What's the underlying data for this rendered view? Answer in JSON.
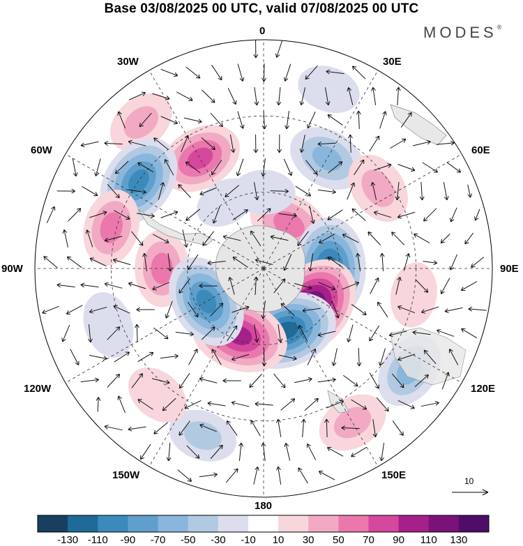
{
  "title": "Base 03/08/2025 00 UTC, valid 07/08/2025 00 UTC",
  "brand": "MODES",
  "brand_mark": "®",
  "longitude_labels": {
    "lon_0": "0",
    "lon_30e": "30E",
    "lon_60e": "60E",
    "lon_90e": "90E",
    "lon_120e": "120E",
    "lon_150e": "150E",
    "lon_180": "180",
    "lon_150w": "150W",
    "lon_120w": "120W",
    "lon_90w": "90W",
    "lon_60w": "60W",
    "lon_30w": "30W"
  },
  "reference_vector": {
    "label": "10",
    "magnitude": 10
  },
  "colorbar": {
    "ticks": [
      "-130",
      "-110",
      "-90",
      "-70",
      "-50",
      "-30",
      "-10",
      "10",
      "30",
      "50",
      "70",
      "90",
      "110",
      "130"
    ],
    "colors": [
      "#17405f",
      "#1f6a96",
      "#3c8abc",
      "#5e9fcc",
      "#89b6dc",
      "#b2c9e2",
      "#dcdeee",
      "#ffffff",
      "#f8d6dc",
      "#f2a9c4",
      "#ea78ad",
      "#d4489d",
      "#a52089",
      "#7a1279",
      "#4f0d69"
    ]
  },
  "map_features": {
    "blobs": [
      {
        "lon": 330,
        "lat": 40,
        "value": 75
      },
      {
        "lon": 320,
        "lat": 15,
        "value": 35
      },
      {
        "lon": 30,
        "lat": 40,
        "value": -60
      },
      {
        "lon": 20,
        "lat": 15,
        "value": -20
      },
      {
        "lon": 305,
        "lat": 30,
        "value": -100
      },
      {
        "lon": 285,
        "lat": 28,
        "value": 55
      },
      {
        "lon": 270,
        "lat": 50,
        "value": 55
      },
      {
        "lon": 55,
        "lat": 35,
        "value": 45
      },
      {
        "lon": 30,
        "lat": 70,
        "value": 70
      },
      {
        "lon": 90,
        "lat": 64,
        "value": -120
      },
      {
        "lon": 130,
        "lat": 66,
        "value": 135
      },
      {
        "lon": 160,
        "lat": 64,
        "value": -120
      },
      {
        "lon": 200,
        "lat": 62,
        "value": 110
      },
      {
        "lon": 240,
        "lat": 64,
        "value": -100
      },
      {
        "lon": 250,
        "lat": 25,
        "value": -30
      },
      {
        "lon": 125,
        "lat": 20,
        "value": -55
      },
      {
        "lon": 150,
        "lat": 20,
        "value": 40
      },
      {
        "lon": 200,
        "lat": 20,
        "value": -35
      },
      {
        "lon": 220,
        "lat": 25,
        "value": 25
      },
      {
        "lon": 0,
        "lat": 60,
        "value": -20
      },
      {
        "lon": 330,
        "lat": 60,
        "value": -15
      },
      {
        "lon": 100,
        "lat": 30,
        "value": 25
      }
    ]
  }
}
